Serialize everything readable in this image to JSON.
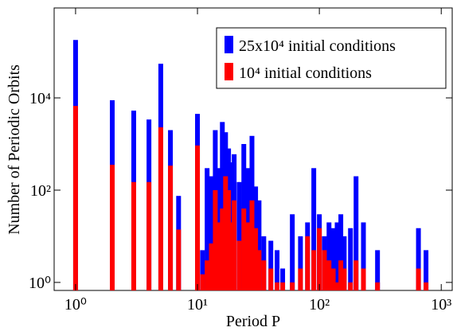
{
  "chart_data": {
    "type": "bar",
    "xlabel": "Period P",
    "ylabel": "Number of Periodic Orbits",
    "x": [
      1,
      2,
      3,
      4,
      5,
      6,
      7,
      10,
      11,
      12,
      13,
      14,
      15,
      16,
      17,
      18,
      19,
      20,
      22,
      24,
      26,
      28,
      30,
      32,
      35,
      40,
      45,
      50,
      60,
      70,
      80,
      90,
      100,
      110,
      120,
      130,
      140,
      150,
      160,
      180,
      200,
      230,
      300,
      650,
      750
    ],
    "series": [
      {
        "name": "25x10⁴ initial conditions",
        "color": "#0000ff",
        "values": [
          180000,
          8900,
          5300,
          3400,
          55000,
          2000,
          75,
          4500,
          5,
          300,
          200,
          2000,
          300,
          3000,
          1800,
          800,
          400,
          600,
          150,
          1000,
          300,
          1500,
          120,
          60,
          10,
          8,
          5,
          2,
          30,
          10,
          20,
          300,
          30,
          10,
          20,
          15,
          20,
          30,
          10,
          15,
          200,
          20,
          5,
          15,
          5
        ]
      },
      {
        "name": "10⁴ initial conditions",
        "color": "#ff0000",
        "values": [
          6700,
          355,
          150,
          150,
          2300,
          340,
          14,
          930,
          1.5,
          3,
          7,
          100,
          20,
          40,
          200,
          100,
          20,
          60,
          8,
          40,
          20,
          60,
          15,
          5,
          3,
          2,
          1,
          1,
          1,
          2,
          10,
          5,
          15,
          5,
          3,
          2,
          1,
          3,
          2,
          1,
          3,
          2,
          1,
          2,
          1
        ]
      }
    ],
    "xscale": "log",
    "yscale": "log",
    "xlim": [
      0.667,
      1230
    ],
    "ylim": [
      0.67,
      890000
    ],
    "xticks": [
      {
        "value": 1,
        "label": "10⁰"
      },
      {
        "value": 10,
        "label": "10¹"
      },
      {
        "value": 100,
        "label": "10²"
      },
      {
        "value": 1000,
        "label": "10³"
      }
    ],
    "yticks": [
      {
        "value": 1,
        "label": "10⁰"
      },
      {
        "value": 100,
        "label": "10²"
      },
      {
        "value": 10000,
        "label": "10⁴"
      }
    ],
    "legend": "upper right"
  }
}
